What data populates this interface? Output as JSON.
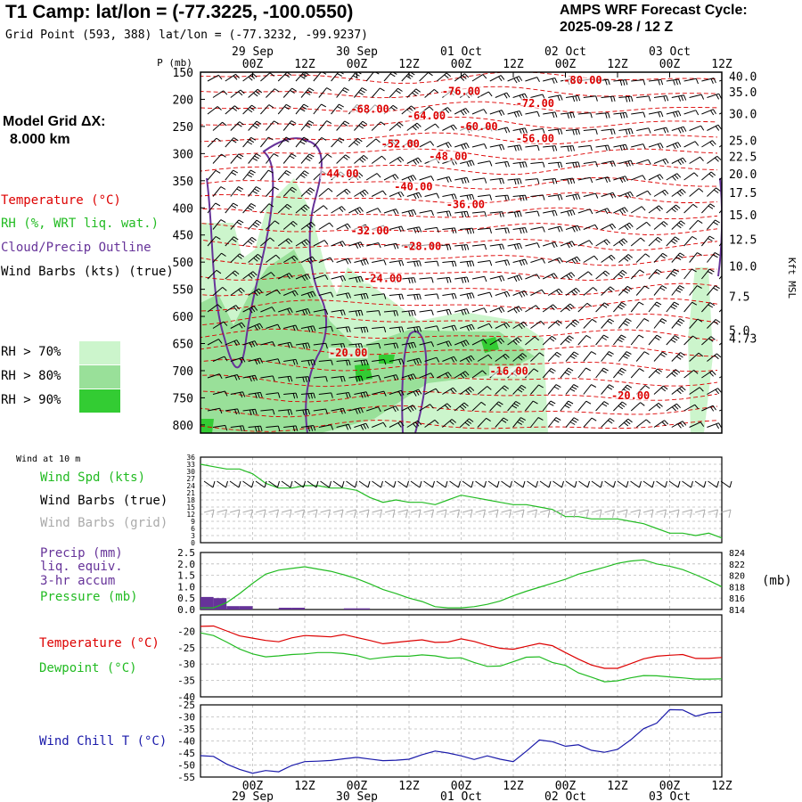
{
  "header": {
    "title": "T1 Camp:  lat/lon = (-77.3225, -100.0550)",
    "grid_point": "Grid Point (593, 388) lat/lon = (-77.3232, -99.9237)",
    "cycle_title": "AMPS WRF Forecast Cycle:",
    "cycle_value": "2025-09-28 / 12  Z"
  },
  "model_grid": {
    "label": "Model Grid ΔX:",
    "value": "8.000 km"
  },
  "legend": {
    "temperature": "Temperature (°C)",
    "rh": "RH (%, WRT liq. wat.)",
    "cloud": "Cloud/Precip Outline",
    "wind_barbs": "Wind Barbs (kts) (true)",
    "rh_70": "RH > 70%",
    "rh_80": "RH > 80%",
    "rh_90": "RH > 90%"
  },
  "colors": {
    "temperature": "#dd0000",
    "rh70": "#ccf5cc",
    "rh80": "#99e099",
    "rh90": "#33cc33",
    "cloud": "#663399",
    "wind_speed": "#22bb22",
    "pressure": "#22bb22",
    "dewpoint": "#22bb22",
    "precip": "#663399",
    "wind_chill": "#1a1aaa",
    "wind_barbs_grid": "#aaaaaa",
    "grid": "#bbbbbb"
  },
  "time_axis": {
    "hours": [
      0,
      12,
      24,
      36,
      48,
      60,
      72,
      84,
      96,
      108,
      120
    ],
    "tick_labels": [
      "00Z",
      "12Z",
      "00Z",
      "12Z",
      "00Z",
      "12Z",
      "00Z",
      "12Z",
      "00Z",
      "12Z"
    ],
    "tick_hours": [
      12,
      24,
      36,
      48,
      60,
      72,
      84,
      96,
      108,
      120
    ],
    "date_labels": [
      "29 Sep",
      "30 Sep",
      "01 Oct",
      "02 Oct",
      "03 Oct"
    ],
    "date_hours": [
      12,
      36,
      60,
      84,
      108
    ]
  },
  "chart_data": [
    {
      "type": "line",
      "name": "time-height cross-section",
      "x_unit": "forecast hour",
      "xlim": [
        0,
        120
      ],
      "ylabel_left": "P (mb)",
      "ylabel_right": "Kft MSL",
      "p_ticks": [
        150,
        200,
        250,
        300,
        350,
        400,
        450,
        500,
        550,
        600,
        650,
        700,
        750,
        800
      ],
      "ylim": [
        150,
        815
      ],
      "kft_ticks": [
        {
          "p": 157,
          "label": "40.0"
        },
        {
          "p": 186,
          "label": "35.0"
        },
        {
          "p": 226,
          "label": "30.0"
        },
        {
          "p": 276,
          "label": "25.0"
        },
        {
          "p": 305,
          "label": "22.5"
        },
        {
          "p": 337,
          "label": "20.0"
        },
        {
          "p": 372,
          "label": "17.5"
        },
        {
          "p": 413,
          "label": "15.0"
        },
        {
          "p": 458,
          "label": "12.5"
        },
        {
          "p": 507,
          "label": "10.0"
        },
        {
          "p": 563,
          "label": "7.5"
        },
        {
          "p": 625,
          "label": "5.0"
        },
        {
          "p": 640,
          "label": "4.73"
        }
      ],
      "temperature_labels": [
        {
          "x": 88,
          "p": 170,
          "label": "-80.00"
        },
        {
          "x": 60,
          "p": 190,
          "label": "-76.00"
        },
        {
          "x": 77,
          "p": 212,
          "label": "-72.00"
        },
        {
          "x": 39,
          "p": 223,
          "label": "-68.00"
        },
        {
          "x": 52,
          "p": 235,
          "label": "-64.00"
        },
        {
          "x": 64,
          "p": 255,
          "label": "-60.00"
        },
        {
          "x": 77,
          "p": 277,
          "label": "-56.00"
        },
        {
          "x": 46,
          "p": 287,
          "label": "-52.00"
        },
        {
          "x": 57,
          "p": 310,
          "label": "-48.00"
        },
        {
          "x": 32,
          "p": 342,
          "label": "-44.00"
        },
        {
          "x": 49,
          "p": 366,
          "label": "-40.00"
        },
        {
          "x": 61,
          "p": 399,
          "label": "-36.00"
        },
        {
          "x": 39,
          "p": 447,
          "label": "-32.00"
        },
        {
          "x": 51,
          "p": 476,
          "label": "-28.00"
        },
        {
          "x": 42,
          "p": 535,
          "label": "-24.00"
        },
        {
          "x": 34,
          "p": 672,
          "label": "-20.00"
        },
        {
          "x": 71,
          "p": 706,
          "label": "-16.00"
        },
        {
          "x": 99,
          "p": 751,
          "label": "-20.00"
        }
      ]
    },
    {
      "type": "line",
      "name": "wind at 10 m",
      "panel_label": "Wind at 10 m",
      "series_label": "Wind Spd (kts)",
      "barbs_true_label": "Wind Barbs (true)",
      "barbs_grid_label": "Wind Barbs (grid)",
      "x": [
        0,
        3,
        6,
        9,
        12,
        15,
        18,
        21,
        24,
        27,
        30,
        33,
        36,
        39,
        42,
        45,
        48,
        51,
        54,
        57,
        60,
        63,
        66,
        69,
        72,
        75,
        78,
        81,
        84,
        87,
        90,
        93,
        96,
        99,
        102,
        105,
        108,
        111,
        114,
        117,
        120
      ],
      "values": [
        33,
        32,
        31,
        31,
        29,
        25,
        23,
        23,
        24,
        24,
        23,
        23,
        22,
        19,
        17,
        18,
        17,
        17,
        16,
        18,
        20,
        19,
        18,
        17,
        16,
        16,
        15,
        14,
        11,
        11,
        10,
        10,
        10,
        9,
        8,
        6,
        4,
        4,
        3,
        4,
        2
      ],
      "ylim": [
        0,
        36
      ],
      "yticks": [
        0,
        3,
        6,
        9,
        12,
        15,
        18,
        21,
        24,
        27,
        30,
        33,
        36
      ]
    },
    {
      "type": "bar",
      "name": "precip and pressure",
      "precip_label_lines": [
        "Precip (mm)",
        "liq. equiv.",
        "3-hr accum"
      ],
      "pressure_label": "Pressure (mb)",
      "pressure_unit_label": "(mb)",
      "precip": {
        "x": [
          0,
          3,
          6,
          9,
          18,
          21,
          33,
          36
        ],
        "values": [
          0.55,
          0.5,
          0.15,
          0.15,
          0.08,
          0.08,
          0.05,
          0.05
        ],
        "ylim": [
          0,
          2.5
        ],
        "yticks": [
          0.0,
          0.5,
          1.0,
          1.5,
          2.0,
          2.5
        ],
        "ytick_labels": [
          "0.0",
          "0.5",
          "1.0",
          "1.5",
          "2.0",
          "2.5"
        ]
      },
      "pressure": {
        "x": [
          0,
          3,
          6,
          9,
          12,
          15,
          18,
          21,
          24,
          27,
          30,
          33,
          36,
          39,
          42,
          45,
          48,
          51,
          54,
          57,
          60,
          63,
          66,
          69,
          72,
          75,
          78,
          81,
          84,
          87,
          90,
          93,
          96,
          99,
          102,
          105,
          108,
          111,
          114,
          117,
          120
        ],
        "values": [
          814.3,
          814.3,
          815.2,
          816.8,
          818.6,
          820.2,
          820.9,
          821.2,
          821.5,
          821.1,
          820.7,
          820.1,
          819.4,
          818.5,
          817.5,
          816.8,
          816.0,
          815.4,
          814.5,
          814.3,
          814.3,
          814.5,
          814.9,
          815.5,
          816.4,
          817.2,
          817.9,
          818.6,
          819.3,
          820.2,
          820.8,
          821.4,
          822.1,
          822.5,
          822.7,
          822.0,
          821.6,
          821.0,
          820.1,
          819.1,
          818.0
        ],
        "ylim": [
          814,
          824
        ],
        "yticks": [
          814,
          816,
          818,
          820,
          822,
          824
        ],
        "ytick_labels": [
          "814",
          "816",
          "818",
          "820",
          "822",
          "824"
        ]
      }
    },
    {
      "type": "line",
      "name": "temperature and dewpoint",
      "x": [
        0,
        3,
        6,
        9,
        12,
        15,
        18,
        21,
        24,
        27,
        30,
        33,
        36,
        39,
        42,
        45,
        48,
        51,
        54,
        57,
        60,
        63,
        66,
        69,
        72,
        75,
        78,
        81,
        84,
        87,
        90,
        93,
        96,
        99,
        102,
        105,
        108,
        111,
        114,
        117,
        120
      ],
      "ylim": [
        -40,
        -15
      ],
      "yticks": [
        -40,
        -35,
        -30,
        -25,
        -20
      ],
      "series": [
        {
          "name": "Temperature (°C)",
          "color": "#dd0000",
          "values": [
            -18.5,
            -18.4,
            -19.9,
            -21.4,
            -22.1,
            -22.8,
            -23.2,
            -22.0,
            -21.3,
            -21.5,
            -21.7,
            -21.0,
            -21.9,
            -22.8,
            -23.8,
            -23.4,
            -23.0,
            -22.6,
            -23.4,
            -23.3,
            -22.3,
            -23.1,
            -24.3,
            -25.2,
            -25.5,
            -24.6,
            -23.7,
            -24.4,
            -26.5,
            -28.5,
            -30.3,
            -31.3,
            -31.3,
            -29.9,
            -28.4,
            -27.6,
            -27.3,
            -27.1,
            -28.3,
            -28.3,
            -28.0
          ]
        },
        {
          "name": "Dewpoint (°C)",
          "color": "#22bb22",
          "values": [
            -20.5,
            -21.3,
            -23.3,
            -25.4,
            -26.9,
            -27.8,
            -27.5,
            -27.1,
            -26.9,
            -26.5,
            -26.5,
            -26.8,
            -27.4,
            -28.5,
            -28.0,
            -27.6,
            -27.6,
            -27.2,
            -27.5,
            -28.2,
            -28.1,
            -29.5,
            -30.7,
            -30.6,
            -29.3,
            -27.9,
            -27.8,
            -29.5,
            -30.4,
            -32.7,
            -34.0,
            -35.4,
            -35.1,
            -34.2,
            -33.5,
            -33.6,
            -33.9,
            -34.2,
            -34.6,
            -34.6,
            -34.5
          ]
        }
      ]
    },
    {
      "type": "line",
      "name": "wind chill",
      "series_label": "Wind Chill T (°C)",
      "x": [
        0,
        3,
        6,
        9,
        12,
        15,
        18,
        21,
        24,
        27,
        30,
        33,
        36,
        39,
        42,
        45,
        48,
        51,
        54,
        57,
        60,
        63,
        66,
        69,
        72,
        75,
        78,
        81,
        84,
        87,
        90,
        93,
        96,
        99,
        102,
        105,
        108,
        111,
        114,
        117,
        120
      ],
      "values": [
        -46.1,
        -46.4,
        -49.6,
        -51.8,
        -53.4,
        -52.3,
        -52.8,
        -50.2,
        -48.6,
        -48.4,
        -48.1,
        -47.4,
        -46.8,
        -47.5,
        -48.2,
        -48.0,
        -47.6,
        -45.7,
        -44.2,
        -45.0,
        -46.2,
        -47.7,
        -46.2,
        -47.6,
        -48.6,
        -44.3,
        -39.6,
        -40.3,
        -42.2,
        -41.6,
        -43.9,
        -44.7,
        -43.5,
        -39.6,
        -34.9,
        -32.6,
        -27.0,
        -27.1,
        -29.7,
        -28.3,
        -28.1
      ],
      "ylim": [
        -55,
        -25
      ],
      "yticks": [
        -55,
        -50,
        -45,
        -40,
        -35,
        -30,
        -25
      ]
    }
  ]
}
